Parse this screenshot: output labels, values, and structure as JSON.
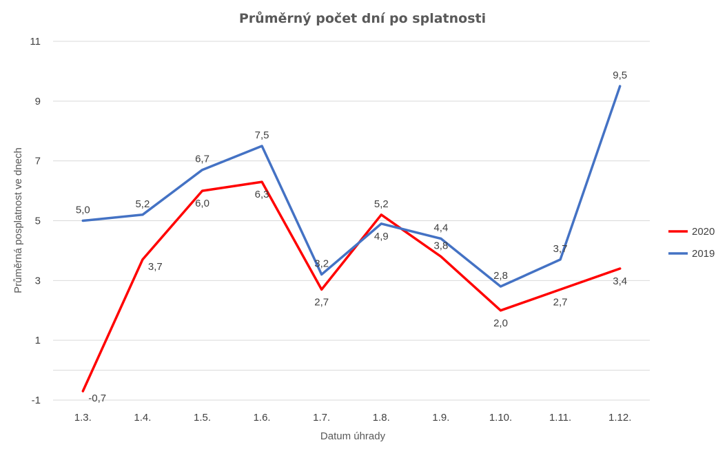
{
  "chart_data": {
    "type": "line",
    "title": "Průměrný počet dní po splatnosti",
    "xlabel": "Datum úhrady",
    "ylabel": "Průměrná posplatnost ve dnech",
    "categories": [
      "1.3.",
      "1.4.",
      "1.5.",
      "1.6.",
      "1.7.",
      "1.8.",
      "1.9.",
      "1.10.",
      "1.11.",
      "1.12."
    ],
    "ylim": [
      -1,
      11
    ],
    "yticks": [
      -1,
      1,
      3,
      5,
      7,
      9,
      11
    ],
    "grid": true,
    "legend_position": "right",
    "series": [
      {
        "name": "2020",
        "color": "#ff0000",
        "values": [
          -0.7,
          3.7,
          6.0,
          6.3,
          2.7,
          5.2,
          3.8,
          2.0,
          2.7,
          3.4
        ],
        "labels": [
          "-0,7",
          "3,7",
          "6,0",
          "6,3",
          "2,7",
          "5,2",
          "3,8",
          "2,0",
          "2,7",
          "3,4"
        ]
      },
      {
        "name": "2019",
        "color": "#4472c4",
        "values": [
          5.0,
          5.2,
          6.7,
          7.5,
          3.2,
          4.9,
          4.4,
          2.8,
          3.7,
          9.5
        ],
        "labels": [
          "5,0",
          "5,2",
          "6,7",
          "7,5",
          "3,2",
          "4,9",
          "4,4",
          "2,8",
          "3,7",
          "9,5"
        ]
      }
    ]
  }
}
